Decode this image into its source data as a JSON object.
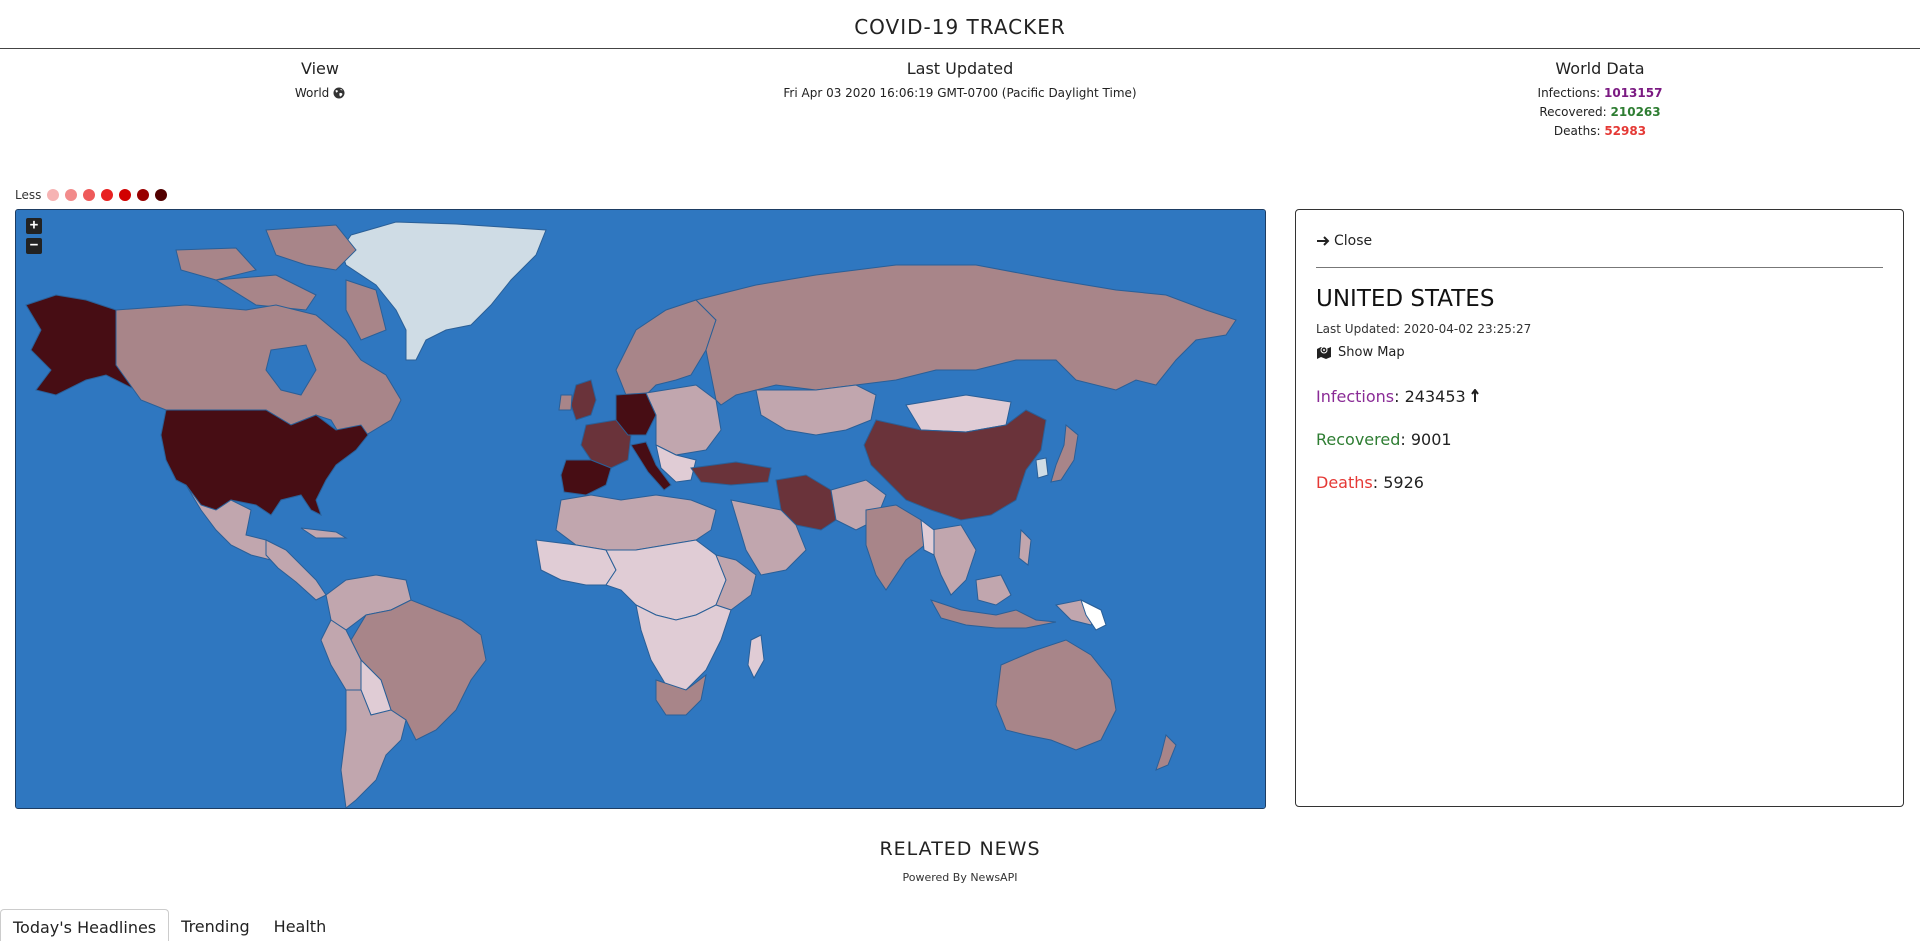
{
  "app": {
    "title": "COVID-19 TRACKER"
  },
  "view": {
    "heading": "View",
    "value": "World"
  },
  "updated": {
    "heading": "Last Updated",
    "value": "Fri Apr 03 2020 16:06:19 GMT-0700 (Pacific Daylight Time)"
  },
  "world": {
    "heading": "World Data",
    "infections_label": "Infections:",
    "infections": "1013157",
    "recovered_label": "Recovered:",
    "recovered": "210263",
    "deaths_label": "Deaths:",
    "deaths": "52983"
  },
  "legend": {
    "label": "Less",
    "colors": [
      "#f6b3b3",
      "#f28b8b",
      "#ee5a5a",
      "#e82020",
      "#d10000",
      "#990000",
      "#520000"
    ]
  },
  "map": {
    "zoom_in": "+",
    "zoom_out": "−",
    "colors": {
      "ocean": "#2f77c0",
      "low": "#e0ccd5",
      "mid": "#c1a6ae",
      "high": "#a88589",
      "severe": "#6a333a",
      "max": "#470d14",
      "none": "#cfdce5"
    }
  },
  "detail": {
    "close_label": "Close",
    "country": "UNITED STATES",
    "last_updated_label": "Last Updated:",
    "last_updated": "2020-04-02 23:25:27",
    "show_map_label": "Show Map",
    "infections_label": "Infections",
    "infections": "243453",
    "recovered_label": "Recovered",
    "recovered": "9001",
    "deaths_label": "Deaths",
    "deaths": "5926"
  },
  "news": {
    "title": "RELATED NEWS",
    "powered_by": "Powered By NewsAPI",
    "tabs": [
      {
        "label": "Today's Headlines"
      },
      {
        "label": "Trending"
      },
      {
        "label": "Health"
      }
    ]
  }
}
